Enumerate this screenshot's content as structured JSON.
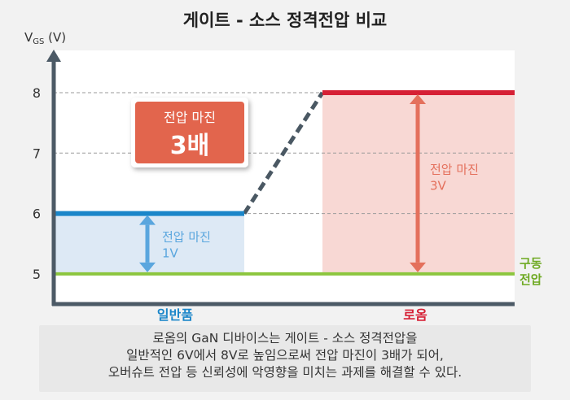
{
  "chart_data": {
    "type": "line",
    "title": "게이트 - 소스 정격전압 비교",
    "ylabel": {
      "main": "V",
      "sub": "GS",
      "unit": " (V)"
    },
    "ylim": [
      4.5,
      8.7
    ],
    "yticks": [
      5,
      6,
      7,
      8
    ],
    "categories": [
      "일반품",
      "로옴"
    ],
    "series": [
      {
        "name": "일반품",
        "rated_voltage": 6,
        "color": "#1b86c9",
        "fill": "#dde9f5"
      },
      {
        "name": "로옴",
        "rated_voltage": 8,
        "color": "#d62035",
        "fill": "#f8d8d4"
      }
    ],
    "drive_voltage": {
      "value": 5,
      "label_line1": "구동",
      "label_line2": "전압",
      "color": "#8cc63e"
    },
    "margin_annotations": [
      {
        "series": "일반품",
        "from": 5,
        "to": 6,
        "line1": "전압 마진",
        "line2": "1V",
        "color": "#5aa6de"
      },
      {
        "series": "로옴",
        "from": 5,
        "to": 8,
        "line1": "전압 마진",
        "line2": "3V",
        "color": "#e4705c"
      }
    ],
    "callout": {
      "line1": "전압 마진",
      "line2": "3배",
      "color": "#e2654e"
    },
    "grid": "dashed-horizontal",
    "colors": {
      "axis": "#4c5a66",
      "category_general": "#1b86c9",
      "category_rohm": "#d62035"
    }
  },
  "caption": [
    "로옴의 GaN 디바이스는 게이트 - 소스 정격전압을",
    "일반적인 6V에서 8V로 높임으로써 전압 마진이 3배가 되어,",
    "오버슈트 전압 등 신뢰성에 악영향을 미치는 과제를 해결할 수 있다."
  ]
}
